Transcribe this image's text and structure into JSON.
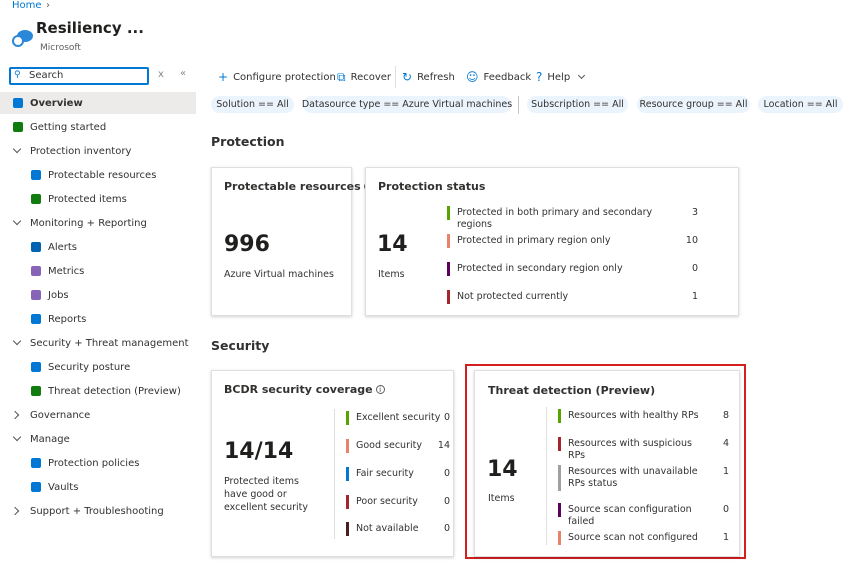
{
  "breadcrumb": "Home",
  "header": {
    "title": "Resiliency ...",
    "subtitle": "Microsoft"
  },
  "search": {
    "placeholder": "Search"
  },
  "nav": [
    {
      "label": "Overview"
    },
    {
      "label": "Getting started"
    },
    {
      "label": "Protection inventory",
      "items": [
        "Protectable resources",
        "Protected items"
      ]
    },
    {
      "label": "Monitoring + Reporting",
      "items": [
        "Alerts",
        "Metrics",
        "Jobs",
        "Reports"
      ]
    },
    {
      "label": "Security + Threat management",
      "items": [
        "Security posture",
        "Threat detection (Preview)"
      ]
    },
    {
      "label": "Governance",
      "expandable": true
    },
    {
      "label": "Manage",
      "items": [
        "Protection policies",
        "Vaults"
      ]
    },
    {
      "label": "Support + Troubleshooting",
      "expandable": true
    }
  ],
  "toolbar": [
    "Configure protection",
    "Recover",
    "Refresh",
    "Feedback",
    "Help"
  ],
  "filters": [
    "Solution == All",
    "Datasource type == Azure Virtual machines",
    "Subscription == All",
    "Resource group == All",
    "Location == All"
  ],
  "protection": {
    "title": "Protection",
    "protectable": {
      "title": "Protectable resources",
      "value": 996,
      "caption": "Azure Virtual machines"
    },
    "status": {
      "title": "Protection status",
      "value": 14,
      "caption": "Items",
      "rows": [
        {
          "label": "Protected in both primary and secondary regions",
          "value": 3,
          "color": "#57a300"
        },
        {
          "label": "Protected in primary region only",
          "value": 10,
          "color": "#e8826a"
        },
        {
          "label": "Protected in secondary region only",
          "value": 0,
          "color": "#5c005c"
        },
        {
          "label": "Not protected currently",
          "value": 1,
          "color": "#a4262c"
        }
      ]
    }
  },
  "security": {
    "title": "Security",
    "coverage": {
      "title": "BCDR security coverage",
      "value": "14/14",
      "caption": "Protected items have good or excellent security",
      "rows": [
        {
          "label": "Excellent security",
          "value": 0,
          "color": "#57a300"
        },
        {
          "label": "Good security",
          "value": 14,
          "color": "#e8826a"
        },
        {
          "label": "Fair security",
          "value": 0,
          "color": "#0078d4"
        },
        {
          "label": "Poor security",
          "value": 0,
          "color": "#a4262c"
        },
        {
          "label": "Not available",
          "value": 0,
          "color": "#4a1f1f"
        }
      ]
    },
    "threat": {
      "title": "Threat detection (Preview)",
      "value": 14,
      "caption": "Items",
      "rows": [
        {
          "label": "Resources with healthy RPs",
          "value": 8,
          "color": "#57a300"
        },
        {
          "label": "Resources with suspicious RPs",
          "value": 4,
          "color": "#a4262c"
        },
        {
          "label": "Resources with unavailable RPs status",
          "value": 1,
          "color": "#a0a0a0"
        },
        {
          "label": "Source scan configuration failed",
          "value": 0,
          "color": "#5c005c"
        },
        {
          "label": "Source scan not configured",
          "value": 1,
          "color": "#e8826a"
        }
      ]
    }
  }
}
